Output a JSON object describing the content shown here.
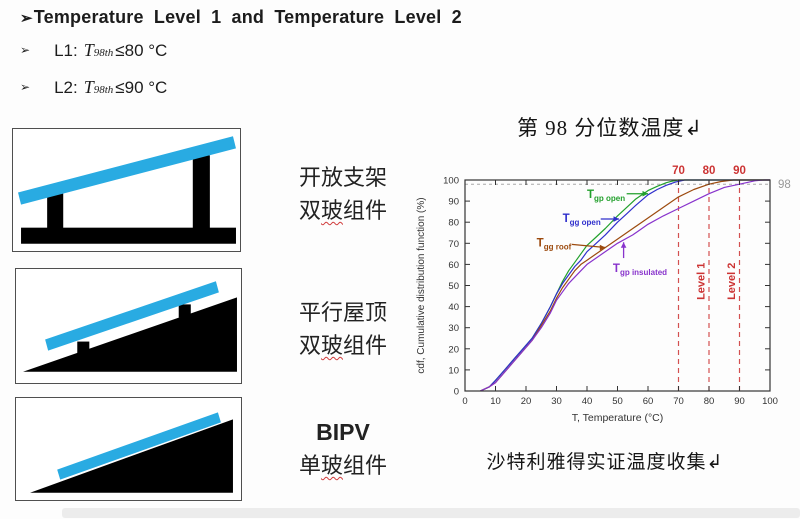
{
  "colors": {
    "panel_blue": "#29abe2",
    "structure_black": "#000000",
    "accent_red": "#cc3333",
    "grey_98": "#999999",
    "text": "#1c1c1c"
  },
  "header": {
    "marker": "➢",
    "title": "Temperature Level 1 and Temperature Level 2",
    "items": [
      {
        "label": "L1:",
        "var": "T",
        "sub": "98th",
        "cond": "≤80 °C"
      },
      {
        "label": "L2:",
        "var": "T",
        "sub": "98th",
        "cond": "≤90 °C"
      }
    ]
  },
  "diagrams": [
    {
      "name": "open-rack-double-glass",
      "label_line1": "开放支架",
      "label_line2_parts": [
        "双",
        "玻",
        "组件"
      ]
    },
    {
      "name": "parallel-roof-double-glass",
      "label_line1": "平行屋顶",
      "label_line2_parts": [
        "双",
        "玻",
        "组件"
      ]
    },
    {
      "name": "bipv-single-glass",
      "label_line1": "BIPV",
      "label_line2_parts": [
        "单",
        "玻",
        "组件"
      ]
    }
  ],
  "chart_data": {
    "type": "line",
    "title": "第 98 分位数温度↲",
    "caption": "沙特利雅得实证温度收集↲",
    "xlabel": "T, Temperature (°C)",
    "ylabel": "cdf, Cumulative distribution function (%)",
    "xlim": [
      0,
      100
    ],
    "ylim": [
      0,
      100
    ],
    "xticks": [
      0,
      10,
      20,
      30,
      40,
      50,
      60,
      70,
      80,
      90,
      100
    ],
    "yticks": [
      0,
      10,
      20,
      30,
      40,
      50,
      60,
      70,
      80,
      90,
      100
    ],
    "grid": false,
    "legend_position": "inline-annotations",
    "reference": {
      "vlines": {
        "values": [
          70,
          80,
          90
        ],
        "labels": [
          "70",
          "80",
          "90"
        ],
        "color": "#cc3333",
        "style": "dashed"
      },
      "hline": {
        "value": 98,
        "label": "98",
        "color": "#aaaaaa",
        "label_color": "#999999",
        "style": "dashed"
      }
    },
    "level_labels": [
      {
        "text": "Level 1",
        "x": 78.5,
        "y": 52,
        "color": "#cc3333"
      },
      {
        "text": "Level 2",
        "x": 88.5,
        "y": 52,
        "color": "#cc3333"
      }
    ],
    "series": [
      {
        "name": "T_gp open",
        "var": "T",
        "sub": "gp open",
        "color": "#22a02c",
        "points": [
          [
            5,
            0
          ],
          [
            8,
            2
          ],
          [
            10,
            5
          ],
          [
            13,
            10
          ],
          [
            16,
            15
          ],
          [
            19,
            20
          ],
          [
            22,
            25
          ],
          [
            25,
            32
          ],
          [
            28,
            40
          ],
          [
            30,
            46
          ],
          [
            32,
            52
          ],
          [
            34,
            57
          ],
          [
            36,
            61
          ],
          [
            38,
            65
          ],
          [
            40,
            69
          ],
          [
            43,
            73
          ],
          [
            46,
            77
          ],
          [
            50,
            83
          ],
          [
            53,
            87
          ],
          [
            56,
            91
          ],
          [
            60,
            95
          ],
          [
            63,
            97
          ],
          [
            66,
            98.7
          ],
          [
            68,
            99.5
          ],
          [
            70,
            100
          ],
          [
            100,
            100
          ]
        ]
      },
      {
        "name": "T_gg open",
        "var": "T",
        "sub": "gg open",
        "color": "#3030cc",
        "points": [
          [
            5,
            0
          ],
          [
            8,
            2
          ],
          [
            10,
            5
          ],
          [
            13,
            10
          ],
          [
            16,
            15
          ],
          [
            19,
            20
          ],
          [
            22,
            25
          ],
          [
            25,
            32
          ],
          [
            28,
            40
          ],
          [
            30,
            46
          ],
          [
            32,
            51
          ],
          [
            34,
            55
          ],
          [
            36,
            59
          ],
          [
            38,
            62
          ],
          [
            40,
            66
          ],
          [
            43,
            70
          ],
          [
            46,
            74
          ],
          [
            50,
            80
          ],
          [
            53,
            84
          ],
          [
            56,
            88
          ],
          [
            60,
            93
          ],
          [
            63,
            95.5
          ],
          [
            66,
            97.5
          ],
          [
            69,
            99
          ],
          [
            72,
            100
          ],
          [
            100,
            100
          ]
        ]
      },
      {
        "name": "T_gg roof",
        "var": "T",
        "sub": "gg roof",
        "color": "#9c4a0e",
        "points": [
          [
            5,
            0
          ],
          [
            8,
            2
          ],
          [
            10,
            4
          ],
          [
            13,
            9
          ],
          [
            16,
            14
          ],
          [
            19,
            19
          ],
          [
            22,
            24
          ],
          [
            25,
            31
          ],
          [
            28,
            38
          ],
          [
            30,
            44
          ],
          [
            32,
            49
          ],
          [
            34,
            53
          ],
          [
            36,
            57
          ],
          [
            38,
            60
          ],
          [
            40,
            62
          ],
          [
            45,
            67
          ],
          [
            50,
            72
          ],
          [
            55,
            77
          ],
          [
            60,
            82
          ],
          [
            65,
            87
          ],
          [
            70,
            92
          ],
          [
            75,
            95.5
          ],
          [
            80,
            98
          ],
          [
            84,
            99.3
          ],
          [
            88,
            100
          ],
          [
            100,
            100
          ]
        ]
      },
      {
        "name": "T_gp insulated",
        "var": "T",
        "sub": "gp insulated",
        "color": "#8833cc",
        "points": [
          [
            5,
            0
          ],
          [
            8,
            2
          ],
          [
            10,
            4
          ],
          [
            13,
            9
          ],
          [
            16,
            14
          ],
          [
            19,
            19
          ],
          [
            22,
            24
          ],
          [
            25,
            30
          ],
          [
            28,
            37
          ],
          [
            30,
            43
          ],
          [
            32,
            47
          ],
          [
            34,
            51
          ],
          [
            36,
            54
          ],
          [
            38,
            57
          ],
          [
            40,
            60
          ],
          [
            45,
            65
          ],
          [
            50,
            70
          ],
          [
            55,
            74
          ],
          [
            60,
            79
          ],
          [
            65,
            83
          ],
          [
            70,
            86.5
          ],
          [
            75,
            90
          ],
          [
            80,
            93.5
          ],
          [
            85,
            96.5
          ],
          [
            90,
            98
          ],
          [
            95,
            99.6
          ],
          [
            98,
            100
          ],
          [
            100,
            100
          ]
        ]
      }
    ],
    "annotations": [
      {
        "var": "T",
        "sub": "gp open",
        "color": "#22a02c",
        "tx": 40,
        "ty": 91.5,
        "arrow": {
          "from": [
            53,
            93.5
          ],
          "to": [
            60,
            93.5
          ],
          "dir": "right"
        }
      },
      {
        "var": "T",
        "sub": "gg open",
        "color": "#3030cc",
        "tx": 32,
        "ty": 80,
        "arrow": {
          "from": [
            44.5,
            81.5
          ],
          "to": [
            50.5,
            81.5
          ],
          "dir": "right"
        }
      },
      {
        "var": "T",
        "sub": "gg roof",
        "color": "#9c4a0e",
        "tx": 23.5,
        "ty": 68.5,
        "arrow": {
          "from": [
            35,
            69.5
          ],
          "to": [
            46,
            68
          ],
          "dir": "right"
        }
      },
      {
        "var": "T",
        "sub": "gp insulated",
        "color": "#8833cc",
        "tx": 48.5,
        "ty": 56.5,
        "arrow": {
          "from": [
            52,
            63
          ],
          "to": [
            52,
            70.5
          ],
          "dir": "up"
        }
      }
    ]
  }
}
